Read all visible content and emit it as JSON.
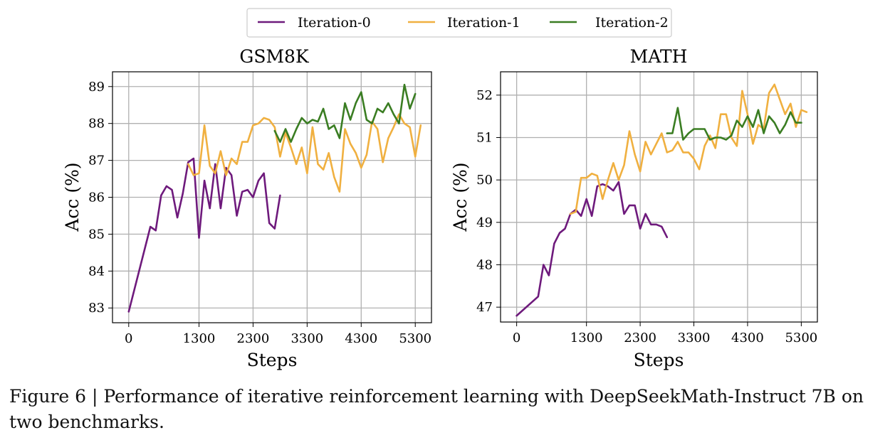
{
  "legend": {
    "entries": [
      {
        "label": "Iteration-0",
        "color": "#6e1a7c"
      },
      {
        "label": "Iteration-1",
        "color": "#f0b040"
      },
      {
        "label": "Iteration-2",
        "color": "#3a7d22"
      }
    ]
  },
  "caption": "Figure 6 | Performance of iterative reinforcement learning with DeepSeekMath-Instruct 7B on two benchmarks.",
  "chart_data": [
    {
      "type": "line",
      "title": "GSM8K",
      "xlabel": "Steps",
      "ylabel": "Acc (%)",
      "xlim": [
        -300,
        5600
      ],
      "ylim": [
        82.6,
        89.4
      ],
      "xticks": [
        0,
        1300,
        2300,
        3300,
        4300,
        5300
      ],
      "yticks": [
        83,
        84,
        85,
        86,
        87,
        88,
        89
      ],
      "grid": true,
      "series": [
        {
          "name": "Iteration-0",
          "color": "#6e1a7c",
          "points": [
            [
              0,
              82.9
            ],
            [
              400,
              85.2
            ],
            [
              500,
              85.1
            ],
            [
              600,
              86.05
            ],
            [
              700,
              86.3
            ],
            [
              800,
              86.2
            ],
            [
              900,
              85.45
            ],
            [
              1000,
              86.1
            ],
            [
              1100,
              86.95
            ],
            [
              1200,
              87.05
            ],
            [
              1300,
              84.9
            ],
            [
              1400,
              86.45
            ],
            [
              1500,
              85.7
            ],
            [
              1600,
              86.9
            ],
            [
              1700,
              85.7
            ],
            [
              1800,
              86.8
            ],
            [
              1900,
              86.6
            ],
            [
              2000,
              85.5
            ],
            [
              2100,
              86.15
            ],
            [
              2200,
              86.2
            ],
            [
              2300,
              86.0
            ],
            [
              2400,
              86.45
            ],
            [
              2500,
              86.65
            ],
            [
              2600,
              85.3
            ],
            [
              2700,
              85.15
            ],
            [
              2800,
              86.05
            ]
          ]
        },
        {
          "name": "Iteration-1",
          "color": "#f0b040",
          "points": [
            [
              1100,
              86.9
            ],
            [
              1200,
              86.6
            ],
            [
              1300,
              86.65
            ],
            [
              1400,
              87.95
            ],
            [
              1500,
              86.85
            ],
            [
              1600,
              86.65
            ],
            [
              1700,
              87.25
            ],
            [
              1800,
              86.6
            ],
            [
              1900,
              87.05
            ],
            [
              2000,
              86.9
            ],
            [
              2100,
              87.5
            ],
            [
              2200,
              87.5
            ],
            [
              2300,
              87.95
            ],
            [
              2400,
              88.0
            ],
            [
              2500,
              88.15
            ],
            [
              2600,
              88.1
            ],
            [
              2700,
              87.9
            ],
            [
              2800,
              87.1
            ],
            [
              2900,
              87.75
            ],
            [
              3000,
              87.35
            ],
            [
              3100,
              86.9
            ],
            [
              3200,
              87.35
            ],
            [
              3300,
              86.65
            ],
            [
              3400,
              87.9
            ],
            [
              3500,
              86.9
            ],
            [
              3600,
              86.75
            ],
            [
              3700,
              87.2
            ],
            [
              3800,
              86.55
            ],
            [
              3900,
              86.15
            ],
            [
              4000,
              87.85
            ],
            [
              4100,
              87.45
            ],
            [
              4200,
              87.2
            ],
            [
              4300,
              86.8
            ],
            [
              4400,
              87.15
            ],
            [
              4500,
              88.05
            ],
            [
              4600,
              87.85
            ],
            [
              4700,
              86.95
            ],
            [
              4800,
              87.6
            ],
            [
              4900,
              87.9
            ],
            [
              5000,
              88.25
            ],
            [
              5100,
              88.0
            ],
            [
              5200,
              87.9
            ],
            [
              5300,
              87.1
            ],
            [
              5400,
              87.95
            ]
          ]
        },
        {
          "name": "Iteration-2",
          "color": "#3a7d22",
          "points": [
            [
              2700,
              87.8
            ],
            [
              2800,
              87.5
            ],
            [
              2900,
              87.85
            ],
            [
              3000,
              87.5
            ],
            [
              3100,
              87.85
            ],
            [
              3200,
              88.15
            ],
            [
              3300,
              88.0
            ],
            [
              3400,
              88.1
            ],
            [
              3500,
              88.05
            ],
            [
              3600,
              88.4
            ],
            [
              3700,
              87.85
            ],
            [
              3800,
              87.95
            ],
            [
              3900,
              87.6
            ],
            [
              4000,
              88.55
            ],
            [
              4100,
              88.1
            ],
            [
              4200,
              88.55
            ],
            [
              4300,
              88.85
            ],
            [
              4400,
              88.1
            ],
            [
              4500,
              88.0
            ],
            [
              4600,
              88.4
            ],
            [
              4700,
              88.3
            ],
            [
              4800,
              88.55
            ],
            [
              4900,
              88.25
            ],
            [
              5000,
              88.0
            ],
            [
              5100,
              89.05
            ],
            [
              5200,
              88.4
            ],
            [
              5300,
              88.8
            ]
          ]
        }
      ]
    },
    {
      "type": "line",
      "title": "MATH",
      "xlabel": "Steps",
      "ylabel": "Acc (%)",
      "xlim": [
        -300,
        5600
      ],
      "ylim": [
        46.65,
        52.55
      ],
      "xticks": [
        0,
        1300,
        2300,
        3300,
        4300,
        5300
      ],
      "yticks": [
        47,
        48,
        49,
        50,
        51,
        52
      ],
      "grid": true,
      "series": [
        {
          "name": "Iteration-0",
          "color": "#6e1a7c",
          "points": [
            [
              0,
              46.8
            ],
            [
              400,
              47.25
            ],
            [
              500,
              48.0
            ],
            [
              600,
              47.75
            ],
            [
              700,
              48.5
            ],
            [
              800,
              48.75
            ],
            [
              900,
              48.85
            ],
            [
              1000,
              49.2
            ],
            [
              1100,
              49.3
            ],
            [
              1200,
              49.15
            ],
            [
              1300,
              49.55
            ],
            [
              1400,
              49.15
            ],
            [
              1500,
              49.85
            ],
            [
              1600,
              49.9
            ],
            [
              1700,
              49.85
            ],
            [
              1800,
              49.75
            ],
            [
              1900,
              49.95
            ],
            [
              2000,
              49.2
            ],
            [
              2100,
              49.4
            ],
            [
              2200,
              49.4
            ],
            [
              2300,
              48.85
            ],
            [
              2400,
              49.2
            ],
            [
              2500,
              48.95
            ],
            [
              2600,
              48.95
            ],
            [
              2700,
              48.9
            ],
            [
              2800,
              48.65
            ]
          ]
        },
        {
          "name": "Iteration-1",
          "color": "#f0b040",
          "points": [
            [
              1000,
              49.2
            ],
            [
              1100,
              49.25
            ],
            [
              1200,
              50.05
            ],
            [
              1300,
              50.05
            ],
            [
              1400,
              50.15
            ],
            [
              1500,
              50.1
            ],
            [
              1600,
              49.55
            ],
            [
              1700,
              50.0
            ],
            [
              1800,
              50.4
            ],
            [
              1900,
              50.0
            ],
            [
              2000,
              50.35
            ],
            [
              2100,
              51.15
            ],
            [
              2200,
              50.6
            ],
            [
              2300,
              50.2
            ],
            [
              2400,
              50.9
            ],
            [
              2500,
              50.6
            ],
            [
              2600,
              50.85
            ],
            [
              2700,
              51.1
            ],
            [
              2800,
              50.65
            ],
            [
              2900,
              50.7
            ],
            [
              3000,
              50.9
            ],
            [
              3100,
              50.65
            ],
            [
              3200,
              50.65
            ],
            [
              3300,
              50.5
            ],
            [
              3400,
              50.25
            ],
            [
              3500,
              50.8
            ],
            [
              3600,
              51.05
            ],
            [
              3700,
              50.75
            ],
            [
              3800,
              51.55
            ],
            [
              3900,
              51.55
            ],
            [
              4000,
              51.0
            ],
            [
              4100,
              50.8
            ],
            [
              4200,
              52.1
            ],
            [
              4300,
              51.55
            ],
            [
              4400,
              50.85
            ],
            [
              4500,
              51.3
            ],
            [
              4600,
              51.2
            ],
            [
              4700,
              52.05
            ],
            [
              4800,
              52.25
            ],
            [
              4900,
              51.9
            ],
            [
              5000,
              51.55
            ],
            [
              5100,
              51.8
            ],
            [
              5200,
              51.25
            ],
            [
              5300,
              51.65
            ],
            [
              5400,
              51.6
            ]
          ]
        },
        {
          "name": "Iteration-2",
          "color": "#3a7d22",
          "points": [
            [
              2800,
              51.1
            ],
            [
              2900,
              51.1
            ],
            [
              3000,
              51.7
            ],
            [
              3100,
              50.95
            ],
            [
              3200,
              51.1
            ],
            [
              3300,
              51.2
            ],
            [
              3400,
              51.2
            ],
            [
              3500,
              51.2
            ],
            [
              3600,
              50.95
            ],
            [
              3700,
              51.0
            ],
            [
              3800,
              51.0
            ],
            [
              3900,
              50.95
            ],
            [
              4000,
              51.05
            ],
            [
              4100,
              51.4
            ],
            [
              4200,
              51.25
            ],
            [
              4300,
              51.5
            ],
            [
              4400,
              51.25
            ],
            [
              4500,
              51.65
            ],
            [
              4600,
              51.1
            ],
            [
              4700,
              51.5
            ],
            [
              4800,
              51.35
            ],
            [
              4900,
              51.1
            ],
            [
              5000,
              51.3
            ],
            [
              5100,
              51.6
            ],
            [
              5200,
              51.35
            ],
            [
              5300,
              51.35
            ]
          ]
        }
      ]
    }
  ]
}
